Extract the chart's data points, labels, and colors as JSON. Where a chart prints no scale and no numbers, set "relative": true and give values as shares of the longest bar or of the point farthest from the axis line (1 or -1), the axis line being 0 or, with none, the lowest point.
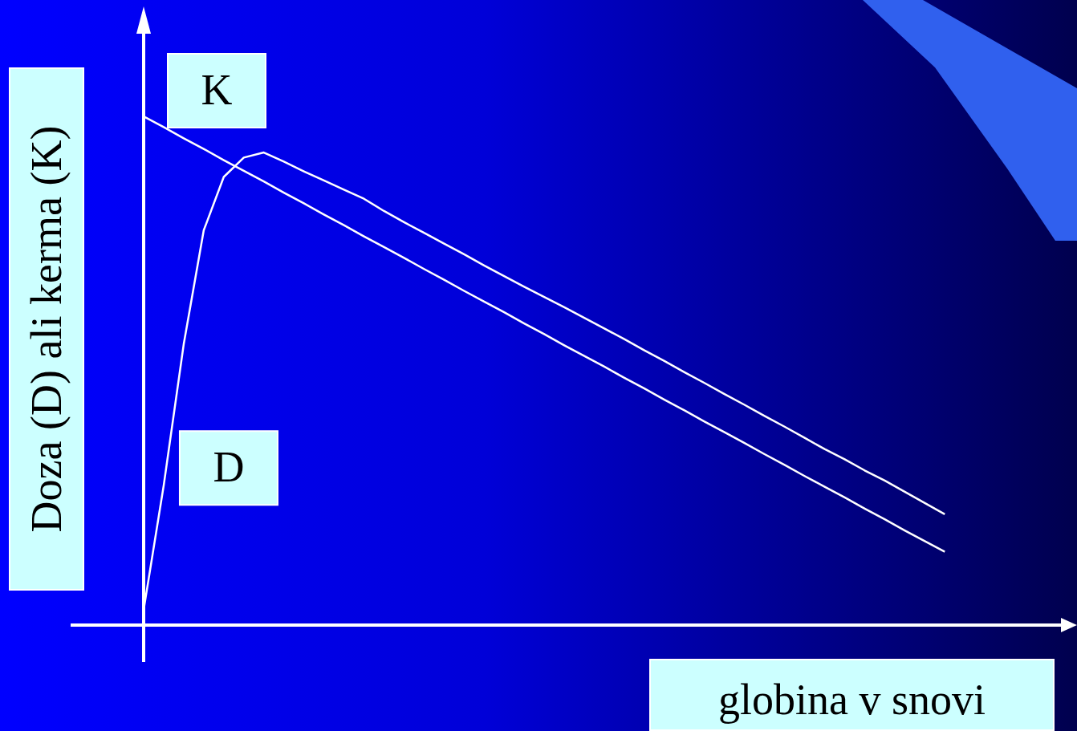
{
  "chart_data": {
    "type": "line",
    "relative": true,
    "xlabel": "globina v snovi",
    "ylabel": "Doza (D) ali kerma (K)",
    "legend": false,
    "tick_labels": false,
    "marker": "none",
    "line_style": "solid",
    "categories": [
      null,
      null,
      null,
      null,
      null,
      null,
      null,
      null,
      null,
      null,
      null,
      null,
      null,
      null,
      null,
      null,
      null,
      null,
      null,
      null,
      null,
      null,
      null,
      null,
      null,
      null,
      null,
      null,
      null,
      null,
      null,
      null,
      null,
      null,
      null,
      null,
      null,
      null,
      null,
      null,
      null
    ],
    "series": [
      {
        "name": "K",
        "color": "#ffffff",
        "values": [
          1,
          0.979,
          0.957,
          0.936,
          0.914,
          0.893,
          0.872,
          0.85,
          0.829,
          0.807,
          0.786,
          0.764,
          0.743,
          0.722,
          0.7,
          0.679,
          0.657,
          0.636,
          0.615,
          0.593,
          0.572,
          0.55,
          0.529,
          0.508,
          0.486,
          0.465,
          0.443,
          0.422,
          0.4,
          0.379,
          0.358,
          0.336,
          0.315,
          0.293,
          0.272,
          0.251,
          0.229,
          0.208,
          0.186,
          0.165,
          0.144
        ]
      },
      {
        "name": "D",
        "color": "#ffffff",
        "values": [
          0.03,
          0.274,
          0.552,
          0.776,
          0.881,
          0.919,
          0.929,
          0.911,
          0.892,
          0.874,
          0.856,
          0.838,
          0.814,
          0.792,
          0.771,
          0.75,
          0.729,
          0.707,
          0.686,
          0.665,
          0.645,
          0.625,
          0.604,
          0.583,
          0.562,
          0.54,
          0.519,
          0.497,
          0.476,
          0.454,
          0.433,
          0.411,
          0.39,
          0.368,
          0.346,
          0.326,
          0.304,
          0.284,
          0.262,
          0.24,
          0.218
        ]
      }
    ]
  }
}
